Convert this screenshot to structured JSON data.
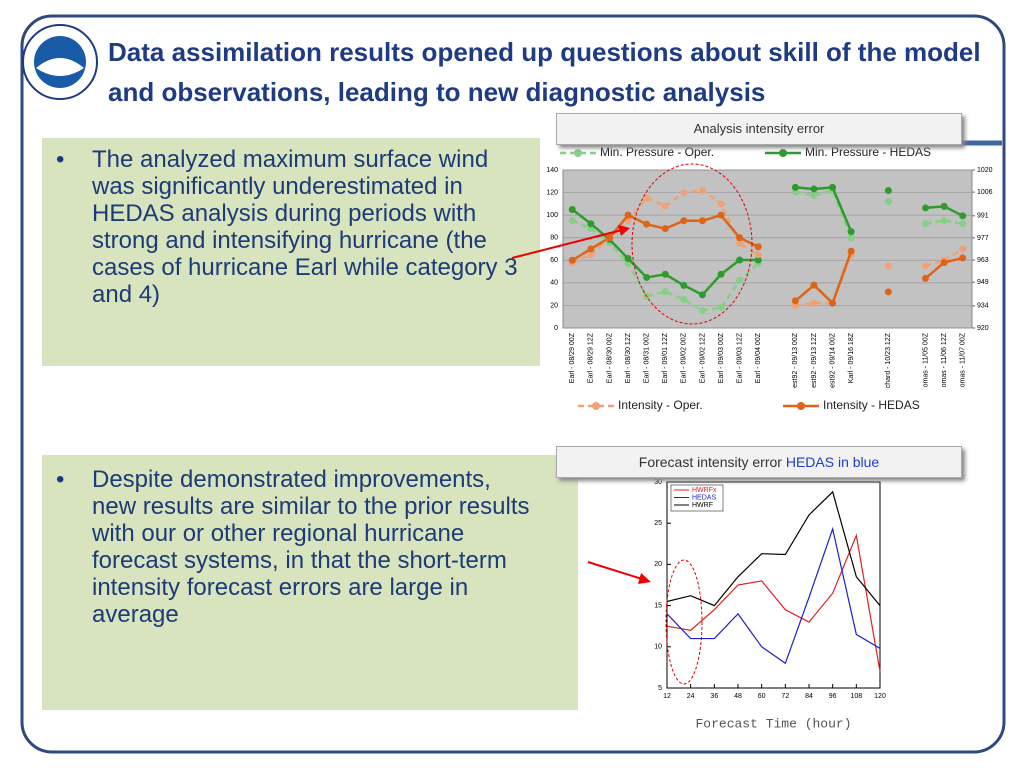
{
  "slide": {
    "title": "Data assimilation results opened up questions about skill of the model and observations, leading to new diagnostic analysis",
    "bullets": [
      "The analyzed maximum surface wind was significantly underestimated in HEDAS analysis during periods with strong and intensifying  hurricane  (the cases of hurricane Earl while category 3 and 4)",
      "Despite demonstrated improvements, new results are similar to the prior results with our or other regional hurricane forecast systems, in that the short-term intensity forecast errors are large in average"
    ]
  },
  "chart_data": [
    {
      "type": "line",
      "title": "Analysis intensity error",
      "categories": [
        "Earl - 08/29 00Z",
        "Earl - 08/29 12Z",
        "Earl - 08/30 00Z",
        "Earl - 08/30 12Z",
        "Earl - 08/31 00Z",
        "Earl - 09/01 12Z",
        "Earl - 09/02 00Z",
        "Earl - 09/02 12Z",
        "Earl - 09/03 00Z",
        "Earl - 09/03 12Z",
        "Earl - 09/04 00Z",
        null,
        "est92 - 09/13 00Z",
        "est92 - 09/13 12Z",
        "est92 - 09/14 00Z",
        "Karl - 09/16 18Z",
        null,
        "chard - 10/23 12Z",
        null,
        "omas - 11/05 00Z",
        "omas - 11/06 12Z",
        "omas - 11/07 00Z"
      ],
      "ylim": [
        0,
        140
      ],
      "yticks": [
        0,
        20,
        40,
        60,
        80,
        100,
        120,
        140
      ],
      "y2lim": [
        920,
        1020
      ],
      "y2ticks": [
        920,
        934,
        949,
        963,
        977,
        991,
        1006,
        1020
      ],
      "grid": true,
      "series": [
        {
          "name": "Min. Pressure - Oper.",
          "color": "#86cf86",
          "style": "dashed",
          "axis": "y2",
          "legend": "top",
          "values": [
            988,
            983,
            974,
            961,
            940,
            943,
            938,
            931,
            933,
            950,
            961,
            null,
            1006,
            1004,
            1007,
            977,
            null,
            1000,
            null,
            986,
            988,
            986
          ]
        },
        {
          "name": "Min. Pressure - HEDAS",
          "color": "#2f9b2f",
          "style": "solid",
          "axis": "y2",
          "legend": "top",
          "values": [
            995,
            986,
            976,
            964,
            952,
            954,
            947,
            941,
            954,
            963,
            963,
            null,
            1009,
            1008,
            1009,
            981,
            null,
            1007,
            null,
            996,
            997,
            991
          ]
        },
        {
          "name": "Intensity - Oper.",
          "color": "#f0a276",
          "style": "dashed",
          "legend": "bottom",
          "values": [
            58,
            65,
            80,
            95,
            115,
            108,
            120,
            122,
            110,
            75,
            65,
            null,
            20,
            22,
            22,
            65,
            null,
            55,
            null,
            55,
            60,
            70
          ]
        },
        {
          "name": "Intensity - HEDAS",
          "color": "#dd6418",
          "style": "solid",
          "legend": "bottom",
          "values": [
            60,
            70,
            80,
            100,
            92,
            88,
            95,
            95,
            100,
            80,
            72,
            null,
            24,
            38,
            22,
            68,
            null,
            32,
            null,
            44,
            58,
            62
          ]
        }
      ]
    },
    {
      "type": "line",
      "title": "Forecast intensity error",
      "title_note": "HEDAS in blue",
      "xlabel": "Forecast Time (hour)",
      "x": [
        12,
        24,
        36,
        48,
        60,
        72,
        84,
        96,
        108,
        120
      ],
      "xlim": [
        12,
        120
      ],
      "xticks": [
        12,
        24,
        36,
        48,
        60,
        72,
        84,
        96,
        108,
        120
      ],
      "ylim": [
        5,
        30
      ],
      "yticks": [
        5,
        10,
        15,
        20,
        25,
        30
      ],
      "grid": false,
      "legend": "top-left",
      "series": [
        {
          "name": "HWRFx",
          "color": "#e02020",
          "values": [
            12.5,
            12,
            14.5,
            17.5,
            18,
            14.5,
            13,
            16.5,
            23.5,
            7
          ]
        },
        {
          "name": "HEDAS",
          "color": "#2020d0",
          "values": [
            14,
            11,
            11,
            14,
            10,
            8,
            16,
            24.3,
            11.5,
            9.8
          ]
        },
        {
          "name": "HWRF",
          "color": "#000000",
          "values": [
            15.5,
            16.2,
            15,
            18.5,
            21.3,
            21.2,
            26,
            28.8,
            18.5,
            15
          ]
        }
      ]
    }
  ]
}
